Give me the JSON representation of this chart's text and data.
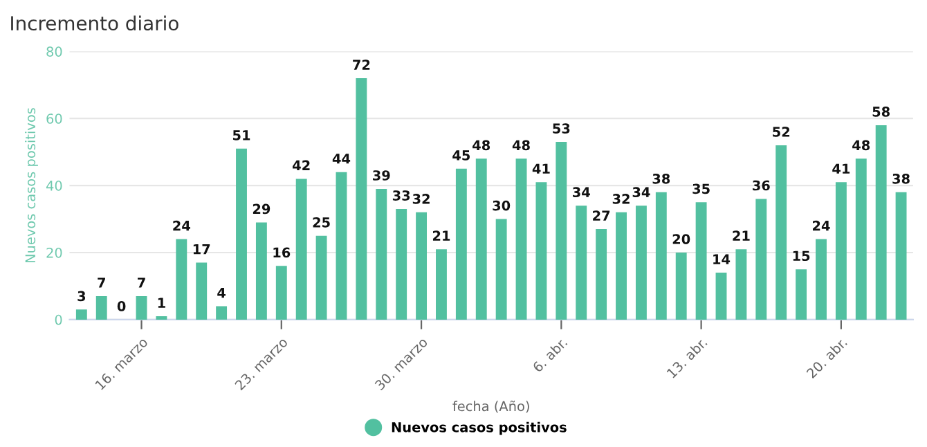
{
  "chart_data": {
    "type": "bar",
    "title": "Incremento diario",
    "xlabel": "fecha (Año)",
    "ylabel": "Nuevos casos positivos",
    "categories": [
      null,
      null,
      null,
      "16. marzo",
      null,
      null,
      null,
      null,
      null,
      null,
      "23. marzo",
      null,
      null,
      null,
      null,
      null,
      null,
      "30. marzo",
      null,
      null,
      null,
      null,
      null,
      null,
      "6. abr.",
      null,
      null,
      null,
      null,
      null,
      null,
      "13. abr.",
      null,
      null,
      null,
      null,
      null,
      null,
      "20. abr.",
      null,
      null,
      null
    ],
    "series": [
      {
        "name": "Nuevos casos positivos",
        "color": "#52c0a0",
        "values": [
          3,
          7,
          0,
          7,
          1,
          24,
          17,
          4,
          51,
          29,
          16,
          42,
          25,
          44,
          72,
          39,
          33,
          32,
          21,
          45,
          48,
          30,
          48,
          41,
          53,
          34,
          27,
          32,
          34,
          38,
          20,
          35,
          14,
          21,
          36,
          52,
          15,
          24,
          41,
          48,
          58,
          38
        ]
      }
    ],
    "ylim": [
      0,
      80
    ],
    "yticks": [
      0,
      20,
      40,
      60,
      80
    ],
    "grid": "y",
    "legend": "bottom",
    "data_labels": true
  }
}
